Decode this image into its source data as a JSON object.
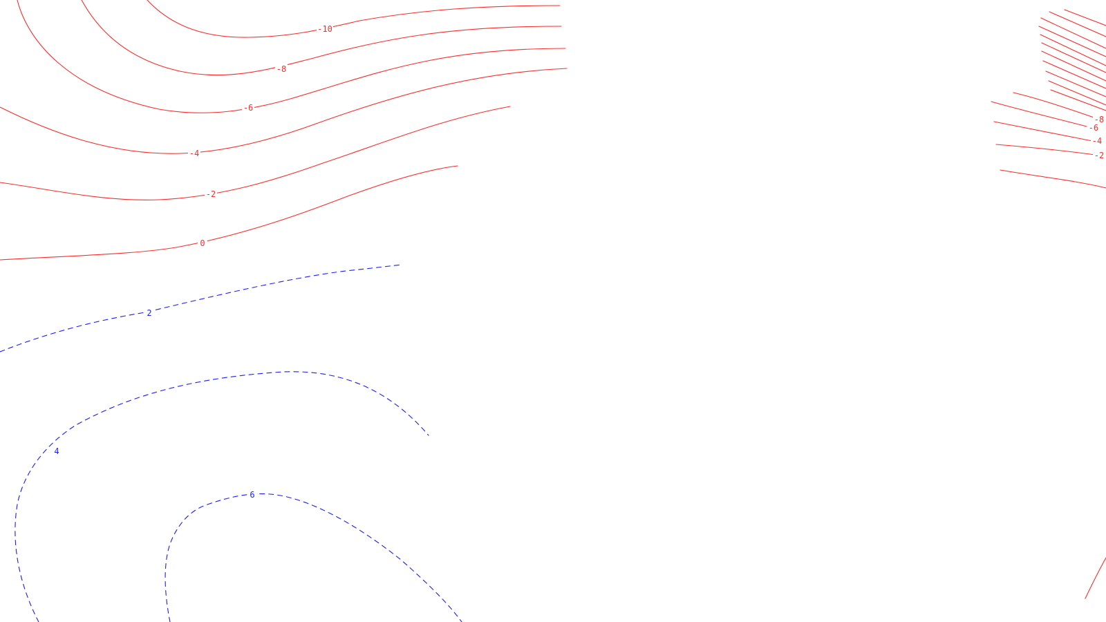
{
  "map": {
    "type": "contour-map",
    "colors": {
      "background": "#ffffff",
      "negative_contour": "#ff2a2a",
      "positive_contour": "#1a1aff"
    },
    "contour_styles": {
      "negative_and_zero": "solid red",
      "positive": "dashed blue"
    },
    "contour_levels": {
      "left_system": [
        "-10",
        "-8",
        "-6",
        "-4",
        "-2",
        "0",
        "2",
        "4",
        "6"
      ],
      "right_system": [
        "-8",
        "-6",
        "-4",
        "-2"
      ]
    },
    "labels": {
      "m10": "-10",
      "m8": "-8",
      "m6": "-6",
      "m4": "-4",
      "m2": "-2",
      "z0": "0",
      "p2": "2",
      "p4": "4",
      "p6": "6",
      "r_m8": "-8",
      "r_m6": "-6",
      "r_m4": "-4",
      "r_m2": "-2"
    }
  }
}
